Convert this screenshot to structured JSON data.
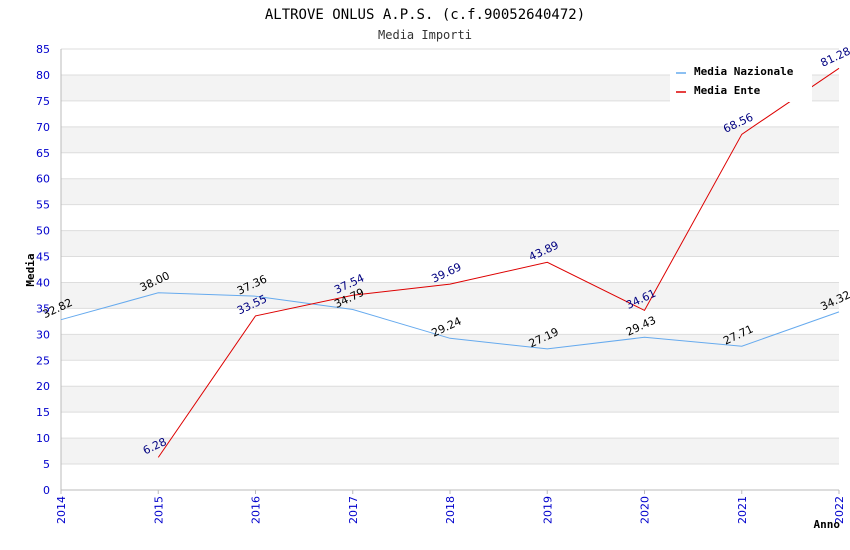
{
  "chart_data": {
    "type": "line",
    "title": "ALTROVE ONLUS A.P.S. (c.f.90052640472)",
    "subtitle": "Media Importi",
    "xlabel": "Anno",
    "ylabel": "Media",
    "x": [
      2014,
      2015,
      2016,
      2017,
      2018,
      2019,
      2020,
      2021,
      2022
    ],
    "ylim": [
      0,
      85
    ],
    "yticks": [
      0,
      5,
      10,
      15,
      20,
      25,
      30,
      35,
      40,
      45,
      50,
      55,
      60,
      65,
      70,
      75,
      80,
      85
    ],
    "grid": true,
    "legend_position": "top-right",
    "series": [
      {
        "name": "Media Nazionale",
        "color": "#66aaee",
        "values": [
          32.82,
          38.0,
          37.36,
          34.79,
          29.24,
          27.19,
          29.43,
          27.71,
          34.32
        ],
        "labels": [
          "32.82",
          "38.00",
          "37.36",
          "34.79",
          "29.24",
          "27.19",
          "29.43",
          "27.71",
          "34.32"
        ]
      },
      {
        "name": "Media Ente",
        "color": "#dd0000",
        "x": [
          2015,
          2016,
          2017,
          2018,
          2019,
          2020,
          2021,
          2022
        ],
        "values": [
          6.28,
          33.55,
          37.54,
          39.69,
          43.89,
          34.61,
          68.56,
          81.28
        ],
        "labels": [
          "6.28",
          "33.55",
          "37.54",
          "39.69",
          "43.89",
          "34.61",
          "68.56",
          "81.28"
        ]
      }
    ]
  }
}
